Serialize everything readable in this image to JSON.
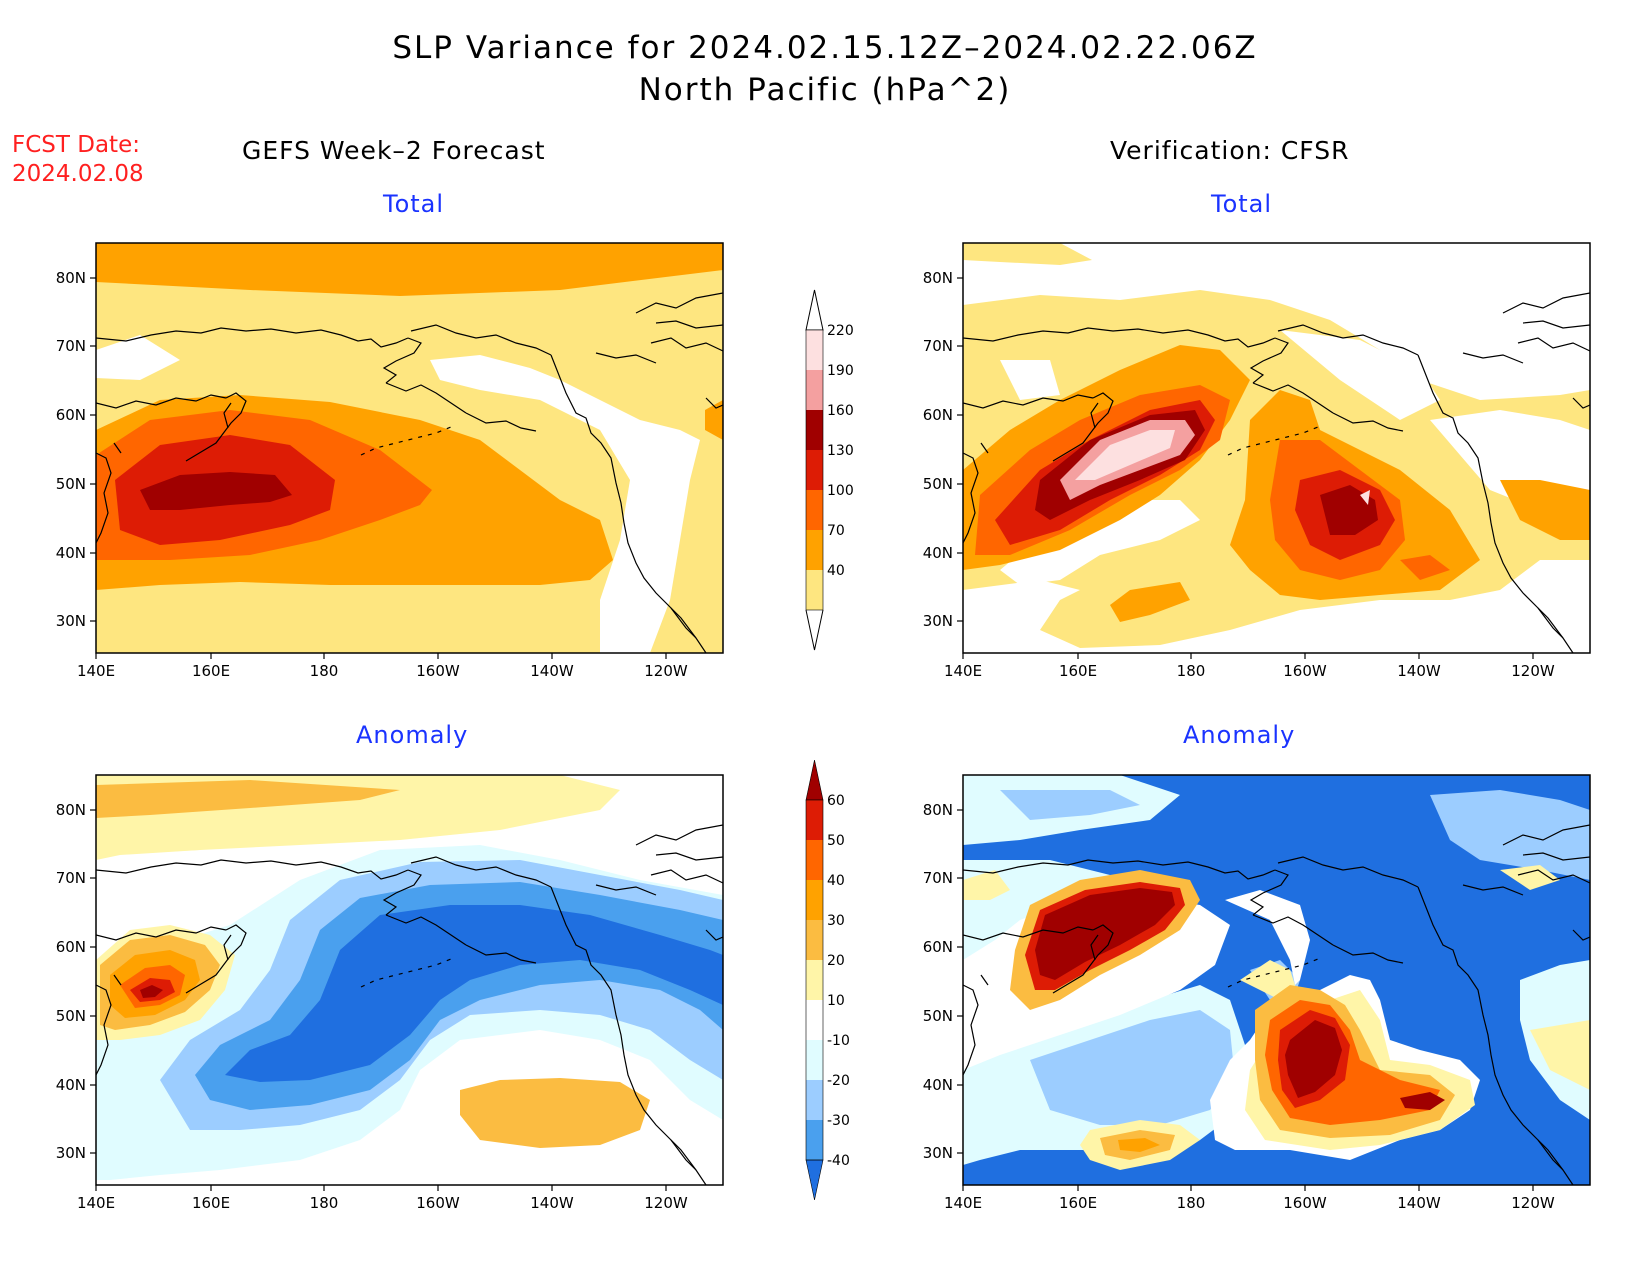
{
  "header": {
    "title_line1": "SLP Variance for 2024.02.15.12Z–2024.02.22.06Z",
    "title_line2": "North Pacific (hPa^2)"
  },
  "fcst": {
    "label": "FCST Date:",
    "date": "2024.02.08"
  },
  "columns": {
    "left": "GEFS Week–2 Forecast",
    "right": "Verification: CFSR"
  },
  "panels": [
    {
      "id": "gefs-total",
      "title": "Total"
    },
    {
      "id": "cfsr-total",
      "title": "Total"
    },
    {
      "id": "gefs-anomaly",
      "title": "Anomaly"
    },
    {
      "id": "cfsr-anomaly",
      "title": "Anomaly"
    }
  ],
  "axes": {
    "lat_labels": [
      "80N",
      "70N",
      "60N",
      "50N",
      "40N",
      "30N"
    ],
    "lon_labels": [
      "140E",
      "160E",
      "180",
      "160W",
      "140W",
      "120W"
    ]
  },
  "colorbar_total": {
    "levels": [
      "220",
      "190",
      "160",
      "130",
      "100",
      "70",
      "40"
    ],
    "colors": [
      "#fde0e0",
      "#f4a0a0",
      "#a00000",
      "#dd1c05",
      "#ff6600",
      "#ffa200",
      "#fee680"
    ]
  },
  "colorbar_anomaly": {
    "levels": [
      "60",
      "50",
      "40",
      "30",
      "20",
      "10",
      "-10",
      "-20",
      "-30",
      "-40"
    ],
    "colors": [
      "#a00000",
      "#dd1c05",
      "#ff6600",
      "#ffa200",
      "#fbbc41",
      "#fff5a8",
      "#ffffff",
      "#e0fcff",
      "#9ccdff",
      "#4aa0ee",
      "#1f6fe0"
    ]
  },
  "colors": {
    "title_blue": "#1a33ff",
    "fcst_red": "#ff2020"
  }
}
